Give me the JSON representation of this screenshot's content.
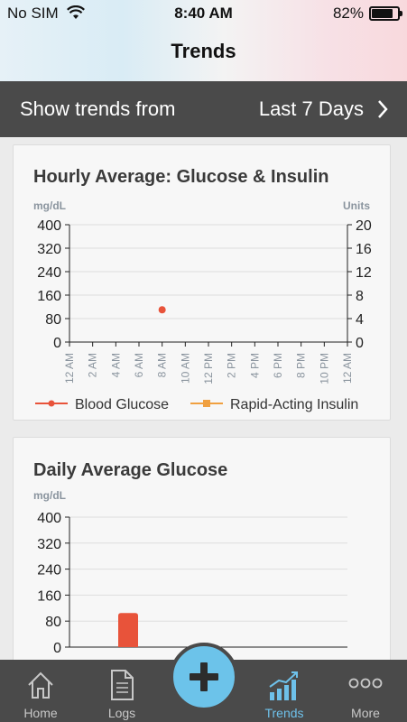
{
  "status_bar": {
    "carrier": "No SIM",
    "time": "8:40 AM",
    "battery": "82%",
    "battery_level": 0.82
  },
  "nav": {
    "title": "Trends"
  },
  "range": {
    "label": "Show trends from",
    "value": "Last 7 Days"
  },
  "hourly_card": {
    "title": "Hourly Average: Glucose & Insulin"
  },
  "daily_card": {
    "title": "Daily Average Glucose"
  },
  "chart_data": [
    {
      "type": "line",
      "title": "Hourly Average: Glucose & Insulin",
      "ylabel": "mg/dL",
      "y2label": "Units",
      "ylim": [
        0,
        400
      ],
      "y2lim": [
        0,
        20
      ],
      "yticks": [
        "400",
        "320",
        "240",
        "160",
        "80",
        "0"
      ],
      "y2ticks": [
        "20",
        "16",
        "12",
        "8",
        "4",
        "0"
      ],
      "categories": [
        "12 AM",
        "2 AM",
        "4 AM",
        "6 AM",
        "8 AM",
        "10 AM",
        "12 PM",
        "2 PM",
        "4 PM",
        "6 PM",
        "8 PM",
        "10 PM",
        "12 AM"
      ],
      "series": [
        {
          "name": "Blood Glucose",
          "color": "#e8533a",
          "points": [
            {
              "x": "8 AM",
              "y": 110
            }
          ]
        },
        {
          "name": "Rapid-Acting Insulin",
          "color": "#f0a040",
          "points": []
        }
      ],
      "legend": "bottom",
      "grid": true
    },
    {
      "type": "bar",
      "title": "Daily Average Glucose",
      "ylabel": "mg/dL",
      "ylim": [
        0,
        400
      ],
      "yticks": [
        "400",
        "320",
        "240",
        "160",
        "80",
        "0"
      ],
      "values": [
        105
      ],
      "color": "#e8533a",
      "grid": true
    }
  ],
  "tabs": [
    {
      "label": "Home",
      "icon": "home-icon"
    },
    {
      "label": "Logs",
      "icon": "document-icon"
    },
    {
      "label": "Trends",
      "icon": "bar-chart-icon",
      "active": true
    },
    {
      "label": "More",
      "icon": "more-dots-icon"
    }
  ],
  "colors": {
    "accent": "#6cc3ea",
    "glucose": "#e8533a",
    "insulin": "#f0a040",
    "dark_bar": "#4a4a4a"
  }
}
